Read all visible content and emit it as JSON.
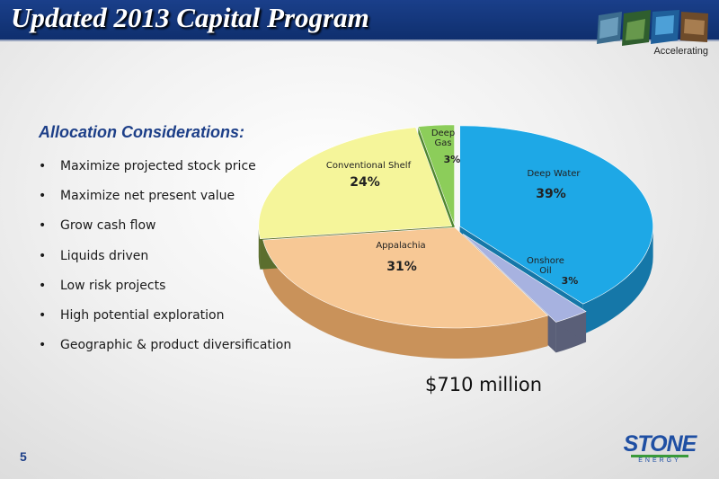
{
  "header": {
    "title": "Updated 2013 Capital Program",
    "tagline": "Accelerating"
  },
  "main": {
    "heading": "Allocation Considerations:",
    "bullets": [
      "Maximize projected stock price",
      "Maximize net present value",
      "Grow cash flow",
      "Liquids driven",
      "Low risk projects",
      "High potential exploration",
      "Geographic & product diversification"
    ],
    "bullet_glyph": "•",
    "total": "$710 million"
  },
  "footer": {
    "page_number": "5",
    "logo_text": "STONE",
    "logo_sub": "ENERGY"
  },
  "chart_data": {
    "type": "pie",
    "title": "",
    "total_label": "$710 million",
    "slices": [
      {
        "name": "Deep Water",
        "label_lines": [
          "Deep Water"
        ],
        "value": 39,
        "value_label": "39%",
        "color": "#1ea8e6",
        "side": "#1577a8"
      },
      {
        "name": "Onshore Oil",
        "label_lines": [
          "Onshore",
          "Oil"
        ],
        "value": 3,
        "value_label": "3%",
        "color": "#a7b2e0",
        "side": "#5a5f78"
      },
      {
        "name": "Appalachia",
        "label_lines": [
          "Appalachia"
        ],
        "value": 31,
        "value_label": "31%",
        "color": "#f7c895",
        "side": "#c9925a"
      },
      {
        "name": "Conventional Shelf",
        "label_lines": [
          "Conventional Shelf"
        ],
        "value": 24,
        "value_label": "24%",
        "color": "#f5f59a",
        "side": "#5b6e2e"
      },
      {
        "name": "Deep Gas",
        "label_lines": [
          "Deep",
          "Gas"
        ],
        "value": 3,
        "value_label": "3%",
        "color": "#8ccd5a",
        "side": "#4f8530"
      }
    ]
  }
}
